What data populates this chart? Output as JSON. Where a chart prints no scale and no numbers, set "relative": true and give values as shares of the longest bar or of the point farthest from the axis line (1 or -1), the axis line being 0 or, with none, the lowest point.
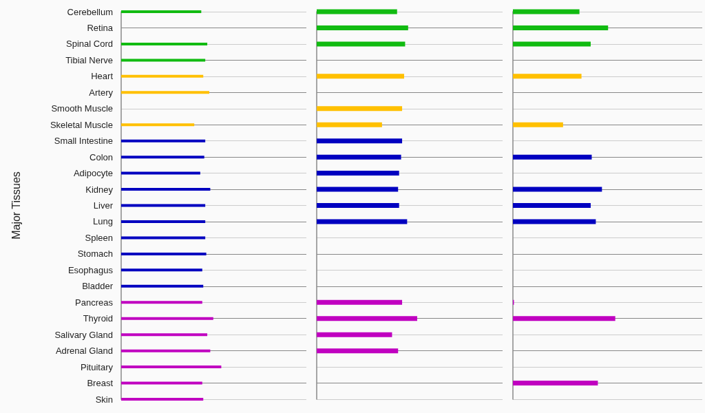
{
  "chart_data": [
    {
      "type": "bar",
      "orientation": "horizontal",
      "relative": true,
      "ylabel": "Major Tissues",
      "grid": "y",
      "categories": [
        "Cerebellum",
        "Retina",
        "Spinal Cord",
        "Tibial Nerve",
        "Heart",
        "Artery",
        "Smooth Muscle",
        "Skeletal Muscle",
        "Small Intestine",
        "Colon",
        "Adipocyte",
        "Kidney",
        "Liver",
        "Lung",
        "Spleen",
        "Stomach",
        "Esophagus",
        "Bladder",
        "Pancreas",
        "Thyroid",
        "Salivary Gland",
        "Adrenal Gland",
        "Pituitary",
        "Breast",
        "Skin"
      ],
      "values": [
        0.8,
        null,
        0.86,
        0.84,
        0.82,
        0.88,
        null,
        0.73,
        0.84,
        0.83,
        0.79,
        0.89,
        0.84,
        0.84,
        0.84,
        0.85,
        0.81,
        0.82,
        0.81,
        0.92,
        0.86,
        0.89,
        1,
        0.81,
        0.82
      ],
      "colors": [
        "#11bb11",
        "#11bb11",
        "#11bb11",
        "#11bb11",
        "#ffc000",
        "#ffc000",
        "#ffc000",
        "#ffc000",
        "#0000c0",
        "#0000c0",
        "#0000c0",
        "#0000c0",
        "#0000c0",
        "#0000c0",
        "#0000c0",
        "#0000c0",
        "#0000c0",
        "#0000c0",
        "#c000c0",
        "#c000c0",
        "#c000c0",
        "#c000c0",
        "#c000c0",
        "#c000c0",
        "#c000c0"
      ]
    },
    {
      "type": "bar",
      "orientation": "horizontal",
      "relative": true,
      "grid": "y",
      "tick_labels": false,
      "categories": [
        null,
        null,
        null,
        null,
        null,
        null,
        null,
        null,
        null,
        null,
        null,
        null,
        null,
        null,
        null,
        null,
        null,
        null,
        null,
        null,
        null,
        null,
        null,
        null,
        null
      ],
      "values": [
        0.8,
        0.91,
        0.88,
        null,
        0.87,
        null,
        0.85,
        0.65,
        0.85,
        0.84,
        0.82,
        0.81,
        0.82,
        0.9,
        null,
        null,
        null,
        null,
        0.85,
        1,
        0.75,
        0.81,
        null,
        null,
        null
      ],
      "colors": [
        "#11bb11",
        "#11bb11",
        "#11bb11",
        "#11bb11",
        "#ffc000",
        "#ffc000",
        "#ffc000",
        "#ffc000",
        "#0000c0",
        "#0000c0",
        "#0000c0",
        "#0000c0",
        "#0000c0",
        "#0000c0",
        "#0000c0",
        "#0000c0",
        "#0000c0",
        "#0000c0",
        "#c000c0",
        "#c000c0",
        "#c000c0",
        "#c000c0",
        "#c000c0",
        "#c000c0",
        "#c000c0"
      ]
    },
    {
      "type": "bar",
      "orientation": "horizontal",
      "relative": true,
      "grid": "y",
      "tick_labels": false,
      "categories": [
        null,
        null,
        null,
        null,
        null,
        null,
        null,
        null,
        null,
        null,
        null,
        null,
        null,
        null,
        null,
        null,
        null,
        null,
        null,
        null,
        null,
        null,
        null,
        null,
        null
      ],
      "values": [
        0.65,
        0.93,
        0.76,
        null,
        0.67,
        null,
        null,
        0.49,
        null,
        0.77,
        null,
        0.87,
        0.76,
        0.81,
        null,
        null,
        null,
        null,
        0.01,
        1,
        null,
        null,
        null,
        0.83,
        null
      ],
      "colors": [
        "#11bb11",
        "#11bb11",
        "#11bb11",
        "#11bb11",
        "#ffc000",
        "#ffc000",
        "#ffc000",
        "#ffc000",
        "#0000c0",
        "#0000c0",
        "#0000c0",
        "#0000c0",
        "#0000c0",
        "#0000c0",
        "#0000c0",
        "#0000c0",
        "#0000c0",
        "#0000c0",
        "#c000c0",
        "#c000c0",
        "#c000c0",
        "#c000c0",
        "#c000c0",
        "#c000c0",
        "#c000c0"
      ]
    }
  ]
}
